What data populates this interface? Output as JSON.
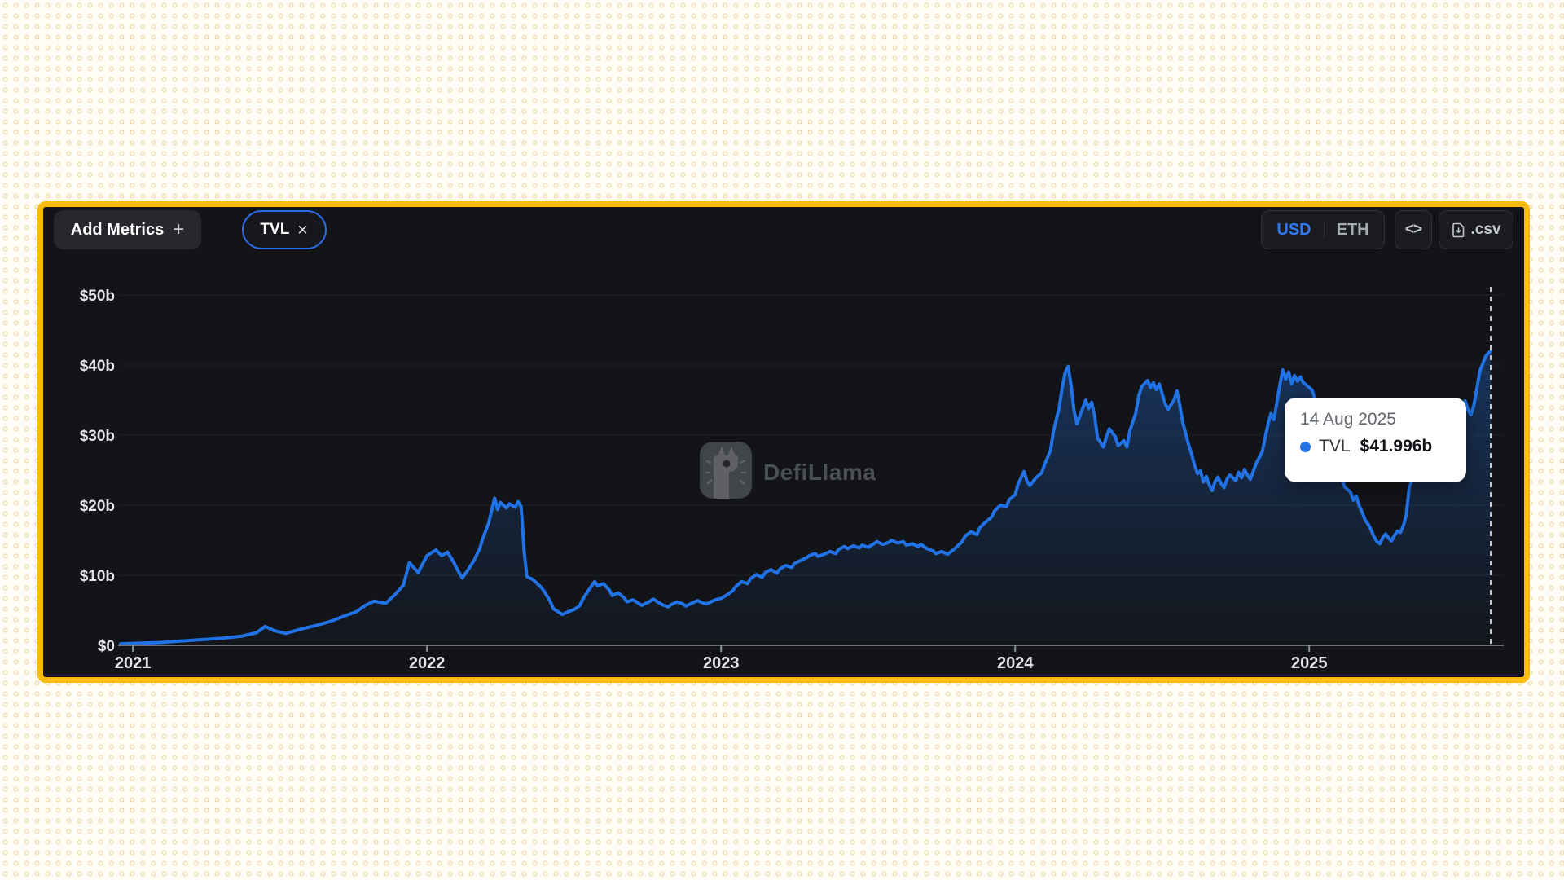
{
  "panel": {
    "toolbar": {
      "add_metrics_label": "Add Metrics",
      "add_metrics_icon": "+",
      "metric_pill": {
        "label": "TVL",
        "close_icon": "✕"
      },
      "currency_toggle": {
        "options": [
          "USD",
          "ETH"
        ],
        "selected": "USD"
      },
      "embed_icon": "<>",
      "csv_label": ".csv"
    },
    "watermark": "DefiLlama",
    "tooltip": {
      "date": "14 Aug 2025",
      "series": "TVL",
      "value": "$41.996b"
    }
  },
  "colors": {
    "accent_blue": "#2172E5",
    "panel_border_yellow": "#F9BB0B",
    "panel_background": "#131417",
    "page_background": "#fffdf6",
    "usd_selected": "#3179f2"
  },
  "chart_data": {
    "type": "area",
    "title": "",
    "series_name": "TVL",
    "xlabel": "",
    "ylabel": "",
    "x_range": [
      2020.958,
      2025.617
    ],
    "y_range": [
      0,
      50
    ],
    "grid": "horizontal-faint",
    "legend": "none",
    "line_color": "#2172E5",
    "area_fill_top": "rgba(33,114,229,0.40)",
    "area_fill_bottom": "rgba(33,114,229,0.02)",
    "x_ticks": [
      {
        "v": 2021,
        "label": "2021"
      },
      {
        "v": 2022,
        "label": "2022"
      },
      {
        "v": 2023,
        "label": "2023"
      },
      {
        "v": 2024,
        "label": "2024"
      },
      {
        "v": 2025,
        "label": "2025"
      }
    ],
    "y_ticks": [
      {
        "v": 0,
        "label": "$0"
      },
      {
        "v": 10,
        "label": "$10b"
      },
      {
        "v": 20,
        "label": "$20b"
      },
      {
        "v": 30,
        "label": "$30b"
      },
      {
        "v": 40,
        "label": "$40b"
      },
      {
        "v": 50,
        "label": "$50b"
      }
    ],
    "hover": {
      "x": 2025.617,
      "date": "14 Aug 2025",
      "value_b": 41.996
    },
    "points": [
      [
        2020.958,
        0.2
      ],
      [
        2021.02,
        0.3
      ],
      [
        2021.09,
        0.4
      ],
      [
        2021.16,
        0.6
      ],
      [
        2021.23,
        0.8
      ],
      [
        2021.3,
        1.0
      ],
      [
        2021.37,
        1.3
      ],
      [
        2021.42,
        1.8
      ],
      [
        2021.45,
        2.7
      ],
      [
        2021.48,
        2.1
      ],
      [
        2021.52,
        1.7
      ],
      [
        2021.57,
        2.3
      ],
      [
        2021.62,
        2.8
      ],
      [
        2021.67,
        3.4
      ],
      [
        2021.72,
        4.2
      ],
      [
        2021.76,
        4.8
      ],
      [
        2021.79,
        5.7
      ],
      [
        2021.82,
        6.3
      ],
      [
        2021.86,
        6.0
      ],
      [
        2021.89,
        7.2
      ],
      [
        2021.92,
        8.6
      ],
      [
        2021.94,
        11.8
      ],
      [
        2021.97,
        10.4
      ],
      [
        2022.0,
        12.8
      ],
      [
        2022.03,
        13.6
      ],
      [
        2022.05,
        12.8
      ],
      [
        2022.07,
        13.3
      ],
      [
        2022.09,
        11.9
      ],
      [
        2022.11,
        10.3
      ],
      [
        2022.12,
        9.6
      ],
      [
        2022.14,
        10.8
      ],
      [
        2022.16,
        12.1
      ],
      [
        2022.18,
        13.9
      ],
      [
        2022.19,
        15.3
      ],
      [
        2022.21,
        17.5
      ],
      [
        2022.22,
        19.3
      ],
      [
        2022.23,
        21.0
      ],
      [
        2022.24,
        19.4
      ],
      [
        2022.25,
        20.4
      ],
      [
        2022.27,
        19.6
      ],
      [
        2022.28,
        20.2
      ],
      [
        2022.3,
        19.7
      ],
      [
        2022.31,
        20.5
      ],
      [
        2022.32,
        19.8
      ],
      [
        2022.325,
        17.0
      ],
      [
        2022.33,
        13.5
      ],
      [
        2022.34,
        9.8
      ],
      [
        2022.36,
        9.4
      ],
      [
        2022.37,
        9.0
      ],
      [
        2022.39,
        8.2
      ],
      [
        2022.4,
        7.6
      ],
      [
        2022.42,
        6.2
      ],
      [
        2022.43,
        5.2
      ],
      [
        2022.45,
        4.7
      ],
      [
        2022.46,
        4.4
      ],
      [
        2022.48,
        4.8
      ],
      [
        2022.5,
        5.1
      ],
      [
        2022.52,
        5.7
      ],
      [
        2022.53,
        6.6
      ],
      [
        2022.55,
        7.9
      ],
      [
        2022.57,
        9.1
      ],
      [
        2022.58,
        8.5
      ],
      [
        2022.6,
        8.8
      ],
      [
        2022.62,
        7.9
      ],
      [
        2022.63,
        7.1
      ],
      [
        2022.65,
        7.5
      ],
      [
        2022.67,
        6.8
      ],
      [
        2022.68,
        6.2
      ],
      [
        2022.7,
        6.5
      ],
      [
        2022.72,
        6.0
      ],
      [
        2022.73,
        5.7
      ],
      [
        2022.75,
        6.1
      ],
      [
        2022.77,
        6.6
      ],
      [
        2022.78,
        6.3
      ],
      [
        2022.8,
        5.8
      ],
      [
        2022.82,
        5.5
      ],
      [
        2022.83,
        5.8
      ],
      [
        2022.85,
        6.2
      ],
      [
        2022.87,
        5.9
      ],
      [
        2022.88,
        5.6
      ],
      [
        2022.9,
        6.0
      ],
      [
        2022.92,
        6.4
      ],
      [
        2022.93,
        6.2
      ],
      [
        2022.95,
        5.9
      ],
      [
        2022.97,
        6.3
      ],
      [
        2022.98,
        6.5
      ],
      [
        2023.0,
        6.7
      ],
      [
        2023.02,
        7.2
      ],
      [
        2023.04,
        7.8
      ],
      [
        2023.05,
        8.4
      ],
      [
        2023.07,
        9.1
      ],
      [
        2023.09,
        8.8
      ],
      [
        2023.1,
        9.5
      ],
      [
        2023.12,
        10.1
      ],
      [
        2023.14,
        9.7
      ],
      [
        2023.15,
        10.4
      ],
      [
        2023.17,
        10.8
      ],
      [
        2023.19,
        10.3
      ],
      [
        2023.2,
        10.9
      ],
      [
        2023.22,
        11.4
      ],
      [
        2023.24,
        11.1
      ],
      [
        2023.25,
        11.7
      ],
      [
        2023.27,
        12.1
      ],
      [
        2023.29,
        12.5
      ],
      [
        2023.3,
        12.8
      ],
      [
        2023.32,
        13.1
      ],
      [
        2023.33,
        12.7
      ],
      [
        2023.35,
        13.0
      ],
      [
        2023.37,
        13.4
      ],
      [
        2023.39,
        13.1
      ],
      [
        2023.4,
        13.7
      ],
      [
        2023.42,
        14.1
      ],
      [
        2023.43,
        13.8
      ],
      [
        2023.45,
        14.2
      ],
      [
        2023.47,
        13.9
      ],
      [
        2023.48,
        14.3
      ],
      [
        2023.5,
        14.0
      ],
      [
        2023.52,
        14.5
      ],
      [
        2023.53,
        14.8
      ],
      [
        2023.55,
        14.4
      ],
      [
        2023.57,
        14.7
      ],
      [
        2023.58,
        15.0
      ],
      [
        2023.6,
        14.6
      ],
      [
        2023.62,
        14.8
      ],
      [
        2023.63,
        14.3
      ],
      [
        2023.65,
        14.5
      ],
      [
        2023.67,
        14.1
      ],
      [
        2023.68,
        14.4
      ],
      [
        2023.7,
        13.8
      ],
      [
        2023.72,
        13.5
      ],
      [
        2023.73,
        13.1
      ],
      [
        2023.75,
        13.4
      ],
      [
        2023.77,
        13.0
      ],
      [
        2023.78,
        13.3
      ],
      [
        2023.8,
        14.0
      ],
      [
        2023.82,
        14.8
      ],
      [
        2023.83,
        15.6
      ],
      [
        2023.85,
        16.2
      ],
      [
        2023.87,
        15.8
      ],
      [
        2023.88,
        16.8
      ],
      [
        2023.9,
        17.6
      ],
      [
        2023.92,
        18.3
      ],
      [
        2023.93,
        19.2
      ],
      [
        2023.95,
        20.0
      ],
      [
        2023.97,
        19.8
      ],
      [
        2023.98,
        20.8
      ],
      [
        2024.0,
        21.5
      ],
      [
        2024.01,
        23.0
      ],
      [
        2024.03,
        24.8
      ],
      [
        2024.04,
        23.4
      ],
      [
        2024.05,
        22.8
      ],
      [
        2024.07,
        23.9
      ],
      [
        2024.09,
        24.6
      ],
      [
        2024.1,
        25.8
      ],
      [
        2024.12,
        27.8
      ],
      [
        2024.13,
        30.5
      ],
      [
        2024.15,
        34.0
      ],
      [
        2024.16,
        36.8
      ],
      [
        2024.17,
        38.9
      ],
      [
        2024.18,
        39.8
      ],
      [
        2024.19,
        37.2
      ],
      [
        2024.2,
        33.6
      ],
      [
        2024.21,
        31.6
      ],
      [
        2024.23,
        33.9
      ],
      [
        2024.24,
        35.0
      ],
      [
        2024.25,
        33.8
      ],
      [
        2024.26,
        34.7
      ],
      [
        2024.27,
        32.8
      ],
      [
        2024.28,
        29.6
      ],
      [
        2024.3,
        28.3
      ],
      [
        2024.31,
        29.7
      ],
      [
        2024.32,
        30.9
      ],
      [
        2024.34,
        29.8
      ],
      [
        2024.35,
        28.5
      ],
      [
        2024.37,
        29.2
      ],
      [
        2024.38,
        28.3
      ],
      [
        2024.39,
        30.6
      ],
      [
        2024.41,
        33.1
      ],
      [
        2024.42,
        35.6
      ],
      [
        2024.43,
        36.9
      ],
      [
        2024.45,
        37.8
      ],
      [
        2024.46,
        36.8
      ],
      [
        2024.47,
        37.5
      ],
      [
        2024.48,
        36.5
      ],
      [
        2024.49,
        37.3
      ],
      [
        2024.5,
        35.9
      ],
      [
        2024.51,
        34.5
      ],
      [
        2024.52,
        33.7
      ],
      [
        2024.54,
        35.0
      ],
      [
        2024.55,
        36.3
      ],
      [
        2024.56,
        34.2
      ],
      [
        2024.57,
        31.8
      ],
      [
        2024.58,
        30.2
      ],
      [
        2024.59,
        28.6
      ],
      [
        2024.6,
        27.3
      ],
      [
        2024.61,
        25.7
      ],
      [
        2024.62,
        24.5
      ],
      [
        2024.63,
        24.9
      ],
      [
        2024.64,
        23.3
      ],
      [
        2024.65,
        24.1
      ],
      [
        2024.66,
        22.9
      ],
      [
        2024.67,
        22.1
      ],
      [
        2024.68,
        23.4
      ],
      [
        2024.69,
        24.0
      ],
      [
        2024.7,
        23.1
      ],
      [
        2024.71,
        22.5
      ],
      [
        2024.72,
        23.7
      ],
      [
        2024.73,
        24.3
      ],
      [
        2024.75,
        23.5
      ],
      [
        2024.76,
        24.7
      ],
      [
        2024.77,
        23.9
      ],
      [
        2024.78,
        25.1
      ],
      [
        2024.79,
        24.3
      ],
      [
        2024.8,
        23.7
      ],
      [
        2024.81,
        24.9
      ],
      [
        2024.82,
        26.0
      ],
      [
        2024.84,
        27.6
      ],
      [
        2024.85,
        29.6
      ],
      [
        2024.86,
        31.6
      ],
      [
        2024.87,
        33.1
      ],
      [
        2024.88,
        32.2
      ],
      [
        2024.89,
        34.6
      ],
      [
        2024.9,
        37.1
      ],
      [
        2024.91,
        39.3
      ],
      [
        2024.92,
        38.0
      ],
      [
        2024.93,
        39.0
      ],
      [
        2024.94,
        37.3
      ],
      [
        2024.95,
        38.5
      ],
      [
        2024.96,
        37.7
      ],
      [
        2024.97,
        38.3
      ],
      [
        2024.98,
        37.5
      ],
      [
        2025.0,
        36.8
      ],
      [
        2025.01,
        36.4
      ],
      [
        2025.02,
        35.1
      ],
      [
        2025.03,
        33.6
      ],
      [
        2025.05,
        32.1
      ],
      [
        2025.06,
        30.6
      ],
      [
        2025.07,
        28.9
      ],
      [
        2025.09,
        27.1
      ],
      [
        2025.1,
        25.6
      ],
      [
        2025.11,
        24.1
      ],
      [
        2025.12,
        22.6
      ],
      [
        2025.14,
        21.9
      ],
      [
        2025.15,
        20.7
      ],
      [
        2025.16,
        21.3
      ],
      [
        2025.17,
        19.9
      ],
      [
        2025.18,
        19.0
      ],
      [
        2025.19,
        17.9
      ],
      [
        2025.2,
        17.3
      ],
      [
        2025.21,
        16.5
      ],
      [
        2025.22,
        15.5
      ],
      [
        2025.23,
        14.8
      ],
      [
        2025.24,
        14.5
      ],
      [
        2025.25,
        15.4
      ],
      [
        2025.26,
        15.9
      ],
      [
        2025.27,
        15.3
      ],
      [
        2025.28,
        14.9
      ],
      [
        2025.29,
        15.7
      ],
      [
        2025.3,
        16.3
      ],
      [
        2025.31,
        16.1
      ],
      [
        2025.32,
        17.1
      ],
      [
        2025.33,
        18.6
      ],
      [
        2025.335,
        20.6
      ],
      [
        2025.34,
        22.6
      ],
      [
        2025.35,
        23.6
      ],
      [
        2025.37,
        24.6
      ],
      [
        2025.38,
        25.6
      ],
      [
        2025.4,
        26.6
      ],
      [
        2025.41,
        27.6
      ],
      [
        2025.42,
        28.6
      ],
      [
        2025.44,
        29.6
      ],
      [
        2025.45,
        30.6
      ],
      [
        2025.46,
        31.6
      ],
      [
        2025.48,
        32.4
      ],
      [
        2025.49,
        33.1
      ],
      [
        2025.5,
        33.9
      ],
      [
        2025.51,
        34.7
      ],
      [
        2025.52,
        33.9
      ],
      [
        2025.53,
        34.9
      ],
      [
        2025.54,
        33.6
      ],
      [
        2025.55,
        32.9
      ],
      [
        2025.56,
        34.3
      ],
      [
        2025.57,
        36.6
      ],
      [
        2025.58,
        39.1
      ],
      [
        2025.6,
        41.3
      ],
      [
        2025.617,
        41.996
      ]
    ]
  }
}
